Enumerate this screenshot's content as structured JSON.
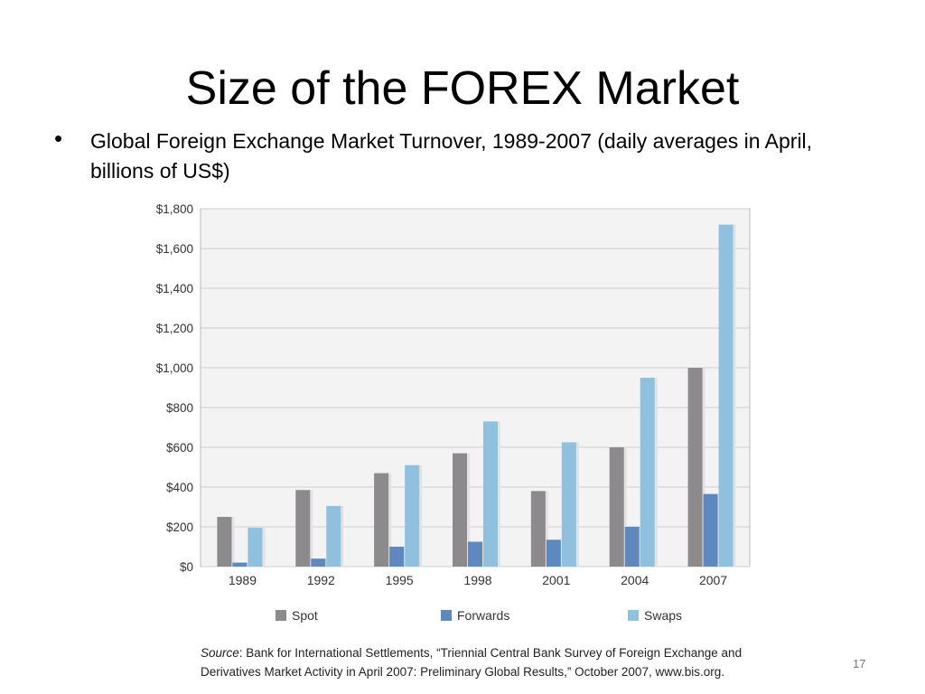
{
  "slide": {
    "title": "Size of the FOREX Market",
    "bullet_marker": "•",
    "bullet": "Global Foreign Exchange Market Turnover, 1989-2007 (daily averages in April, billions of US$)",
    "source_label": "Source",
    "source_text": ": Bank for International Settlements, “Triennial Central Bank Survey of Foreign Exchange and Derivatives Market Activity in April 2007: Preliminary Global Results,” October 2007, www.bis.org.",
    "page_number": "17"
  },
  "chart_data": {
    "type": "bar",
    "categories": [
      "1989",
      "1992",
      "1995",
      "1998",
      "2001",
      "2004",
      "2007"
    ],
    "series": [
      {
        "name": "Spot",
        "color": "#8c8a8c",
        "values": [
          250,
          385,
          470,
          570,
          380,
          600,
          1000
        ]
      },
      {
        "name": "Forwards",
        "color": "#5f88be",
        "values": [
          20,
          40,
          100,
          125,
          135,
          200,
          365
        ]
      },
      {
        "name": "Swaps",
        "color": "#8fc0de",
        "values": [
          195,
          305,
          510,
          730,
          625,
          950,
          1720
        ]
      }
    ],
    "ylim": [
      0,
      1800
    ],
    "yticks": [
      "$0",
      "$200",
      "$400",
      "$600",
      "$800",
      "$1,000",
      "$1,200",
      "$1,400",
      "$1,600",
      "$1,800"
    ],
    "ytick_values": [
      0,
      200,
      400,
      600,
      800,
      1000,
      1200,
      1400,
      1600,
      1800
    ],
    "grid": true,
    "legend_position": "bottom",
    "plot_background": "#f3f3f3",
    "grid_color": "#cfcfcf"
  }
}
